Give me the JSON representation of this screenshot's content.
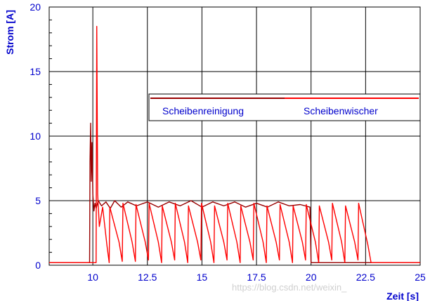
{
  "chart_data": {
    "type": "line",
    "xlabel": "Zeit [s]",
    "ylabel": "Strom [A]",
    "xlim": [
      8,
      25
    ],
    "ylim": [
      0,
      20
    ],
    "x_ticks": [
      10,
      12.5,
      15,
      17.5,
      20,
      22.5,
      25
    ],
    "x_tick_labels": [
      "10",
      "12.5",
      "15",
      "17.5",
      "20",
      "22.5",
      "25"
    ],
    "y_ticks": [
      0,
      5,
      10,
      15,
      20
    ],
    "y_tick_labels": [
      "0",
      "5",
      "10",
      "15",
      "20"
    ],
    "grid": true,
    "legend_position": "upper-right",
    "series": [
      {
        "name": "Scheibenreinigung",
        "color": "#990000",
        "x": [
          8.0,
          9.85,
          9.87,
          9.9,
          9.93,
          9.96,
          10.0,
          10.05,
          10.1,
          10.15,
          10.25,
          10.4,
          10.6,
          10.8,
          11.0,
          11.3,
          11.6,
          12.0,
          12.5,
          13.0,
          13.5,
          14.0,
          14.5,
          15.0,
          15.5,
          16.0,
          16.5,
          17.0,
          17.5,
          18.0,
          18.5,
          19.0,
          19.5,
          19.95,
          20.0,
          25.0
        ],
        "y": [
          0.2,
          0.2,
          8.0,
          11.0,
          6.5,
          9.5,
          5.5,
          4.2,
          4.8,
          4.4,
          5.0,
          4.6,
          4.9,
          4.4,
          5.0,
          4.5,
          4.9,
          4.6,
          4.9,
          4.5,
          4.9,
          4.6,
          5.0,
          4.5,
          4.9,
          4.6,
          4.9,
          4.5,
          4.8,
          4.5,
          4.9,
          4.6,
          4.7,
          4.5,
          0.2,
          0.2
        ]
      },
      {
        "name": "Scheibenwischer",
        "color": "#ff0000",
        "x": [
          8.0,
          10.15,
          10.18,
          10.22,
          10.3,
          10.45,
          10.65,
          10.75,
          10.78,
          11.2,
          11.35,
          11.38,
          11.8,
          11.95,
          11.98,
          12.4,
          12.55,
          12.58,
          13.0,
          13.15,
          13.18,
          13.6,
          13.75,
          13.78,
          14.2,
          14.35,
          14.38,
          14.8,
          14.95,
          14.98,
          15.4,
          15.55,
          15.58,
          16.0,
          16.15,
          16.18,
          16.6,
          16.75,
          16.78,
          17.2,
          17.35,
          17.38,
          17.8,
          17.95,
          17.98,
          18.4,
          18.55,
          18.58,
          19.0,
          19.15,
          19.18,
          19.6,
          19.75,
          19.78,
          20.2,
          20.35,
          20.38,
          20.8,
          20.95,
          20.98,
          21.4,
          21.55,
          21.58,
          22.0,
          22.15,
          22.18,
          22.6,
          22.75,
          22.8,
          25.0
        ],
        "y": [
          0.2,
          0.2,
          18.5,
          5.5,
          3.0,
          4.5,
          1.5,
          0.2,
          4.5,
          1.8,
          0.3,
          4.8,
          1.8,
          0.3,
          4.7,
          1.8,
          0.4,
          4.8,
          1.8,
          0.2,
          4.6,
          1.8,
          0.4,
          4.8,
          1.8,
          0.2,
          4.6,
          1.8,
          0.4,
          4.8,
          1.8,
          0.2,
          4.6,
          1.8,
          0.4,
          4.8,
          1.8,
          0.2,
          4.6,
          1.8,
          0.4,
          4.8,
          1.8,
          0.2,
          4.6,
          1.8,
          0.4,
          4.7,
          1.8,
          0.2,
          4.6,
          1.8,
          0.4,
          4.7,
          1.8,
          0.2,
          4.6,
          1.8,
          0.4,
          4.8,
          1.8,
          0.2,
          4.6,
          1.8,
          0.4,
          4.8,
          1.6,
          0.2,
          0.2,
          0.2
        ]
      }
    ]
  },
  "legend": {
    "items": [
      "Scheibenreinigung",
      "Scheibenwischer"
    ]
  },
  "watermark": "https://blog.csdn.net/weixin_"
}
